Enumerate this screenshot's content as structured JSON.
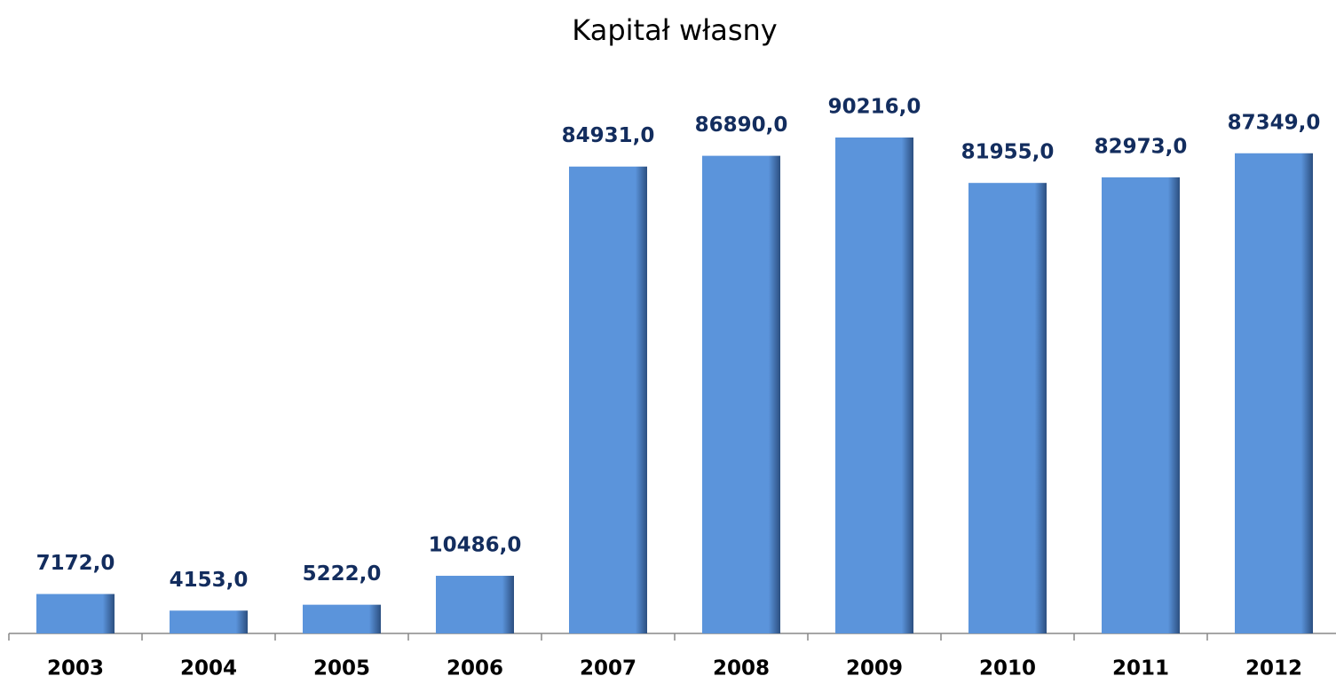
{
  "chart_data": {
    "type": "bar",
    "title": "Kapitał własny",
    "categories": [
      "2003",
      "2004",
      "2005",
      "2006",
      "2007",
      "2008",
      "2009",
      "2010",
      "2011",
      "2012"
    ],
    "values": [
      7172,
      4153,
      5222,
      10486,
      84931,
      86890,
      90216,
      81955,
      82973,
      87349
    ],
    "value_labels": [
      "7172,0",
      "4153,0",
      "5222,0",
      "10486,0",
      "84931,0",
      "86890,0",
      "90216,0",
      "81955,0",
      "82973,0",
      "87349,0"
    ],
    "color": "#5b94db"
  }
}
